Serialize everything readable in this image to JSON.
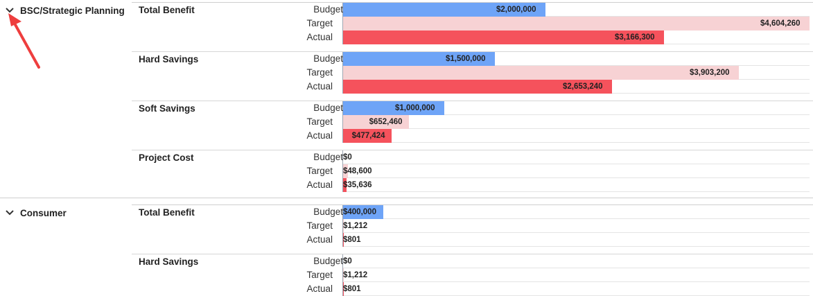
{
  "scale_max": 4604260,
  "colors": {
    "budget": "#6ea4f7",
    "target": "#f7d2d4",
    "actual": "#f5525c",
    "arrow": "#ee3e3e"
  },
  "icons": {
    "expand": "chevron-down-icon",
    "annotation": "red-arrow"
  },
  "groups": [
    {
      "name": "BSC/Strategic Planning",
      "metrics": [
        {
          "name": "Total Benefit",
          "rows": [
            {
              "label": "Budget",
              "value": 2000000,
              "display": "$2,000,000"
            },
            {
              "label": "Target",
              "value": 4604260,
              "display": "$4,604,260"
            },
            {
              "label": "Actual",
              "value": 3166300,
              "display": "$3,166,300"
            }
          ]
        },
        {
          "name": "Hard Savings",
          "rows": [
            {
              "label": "Budget",
              "value": 1500000,
              "display": "$1,500,000"
            },
            {
              "label": "Target",
              "value": 3903200,
              "display": "$3,903,200"
            },
            {
              "label": "Actual",
              "value": 2653240,
              "display": "$2,653,240"
            }
          ]
        },
        {
          "name": "Soft Savings",
          "rows": [
            {
              "label": "Budget",
              "value": 1000000,
              "display": "$1,000,000"
            },
            {
              "label": "Target",
              "value": 652460,
              "display": "$652,460"
            },
            {
              "label": "Actual",
              "value": 477424,
              "display": "$477,424"
            }
          ]
        },
        {
          "name": "Project Cost",
          "rows": [
            {
              "label": "Budget",
              "value": 0,
              "display": "$0"
            },
            {
              "label": "Target",
              "value": 48600,
              "display": "$48,600"
            },
            {
              "label": "Actual",
              "value": 35636,
              "display": "$35,636"
            }
          ]
        }
      ]
    },
    {
      "name": "Consumer",
      "metrics": [
        {
          "name": "Total Benefit",
          "rows": [
            {
              "label": "Budget",
              "value": 400000,
              "display": "$400,000"
            },
            {
              "label": "Target",
              "value": 1212,
              "display": "$1,212"
            },
            {
              "label": "Actual",
              "value": 801,
              "display": "$801"
            }
          ]
        },
        {
          "name": "Hard Savings",
          "rows": [
            {
              "label": "Budget",
              "value": 0,
              "display": "$0"
            },
            {
              "label": "Target",
              "value": 1212,
              "display": "$1,212"
            },
            {
              "label": "Actual",
              "value": 801,
              "display": "$801"
            }
          ]
        }
      ]
    }
  ]
}
